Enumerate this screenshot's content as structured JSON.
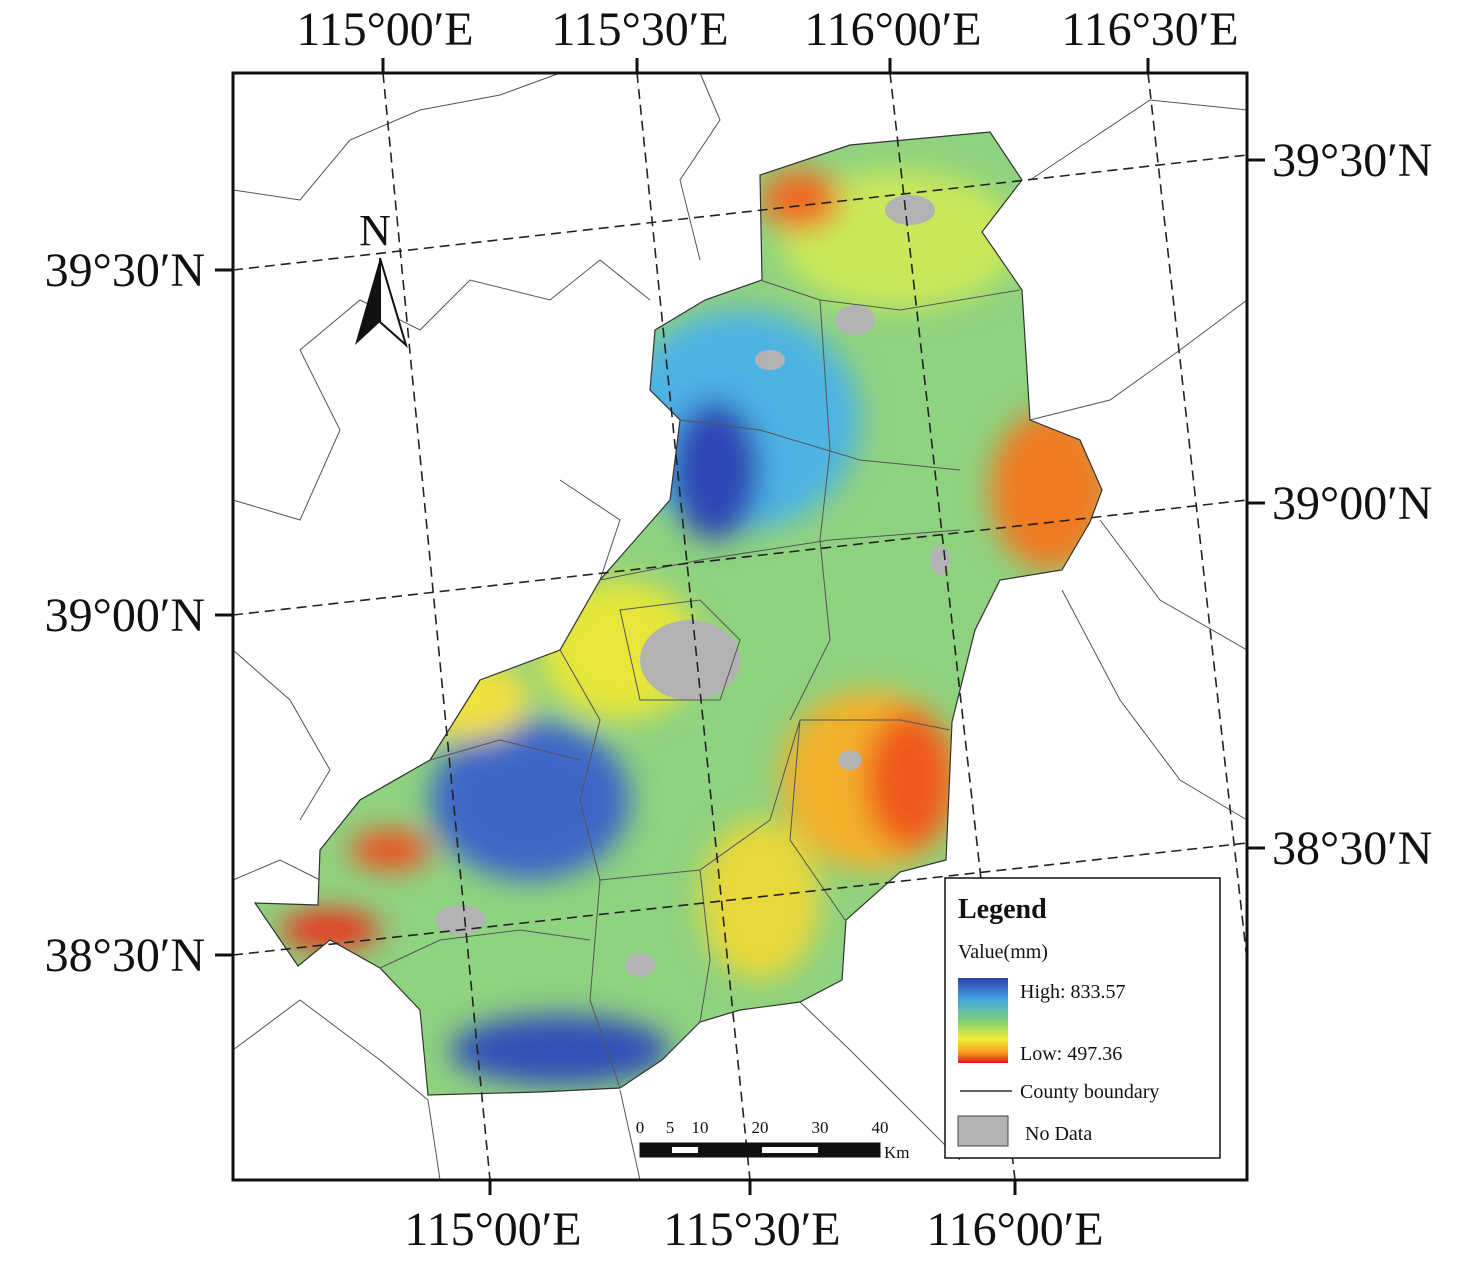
{
  "top_labels": [
    "115°00′E",
    "115°30′E",
    "116°00′E",
    "116°30′E"
  ],
  "bottom_labels": [
    "115°00′E",
    "115°30′E",
    "116°00′E"
  ],
  "left_labels": [
    "39°30′N",
    "39°00′N",
    "38°30′N"
  ],
  "right_labels": [
    "39°30′N",
    "39°00′N",
    "38°30′N"
  ],
  "north_arrow": "N",
  "legend": {
    "title": "Legend",
    "value_title": "Value(mm)",
    "high": "High: 833.57",
    "low": "Low: 497.36",
    "county": "County boundary",
    "no_data": "No Data"
  },
  "scale_bar": {
    "ticks": [
      0,
      5,
      10,
      20,
      30,
      40
    ],
    "unit": "Km"
  }
}
